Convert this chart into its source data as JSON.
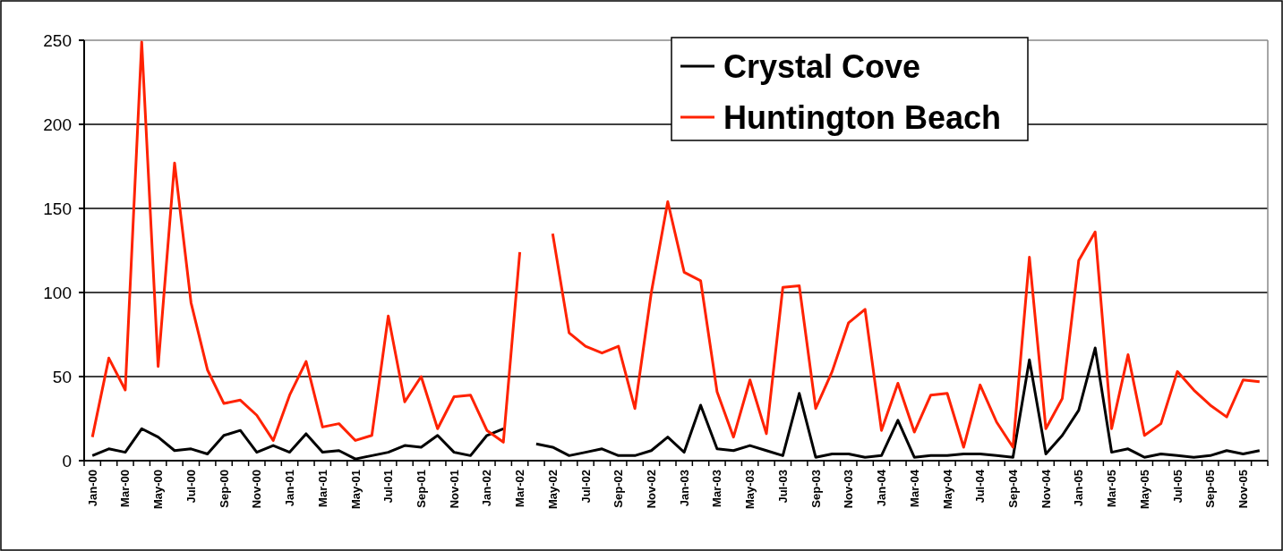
{
  "chart_data": {
    "type": "line",
    "categories": [
      "Jan-00",
      null,
      "Mar-00",
      null,
      "May-00",
      null,
      "Jul-00",
      null,
      "Sep-00",
      null,
      "Nov-00",
      null,
      "Jan-01",
      null,
      "Mar-01",
      null,
      "May-01",
      null,
      "Jul-01",
      null,
      "Sep-01",
      null,
      "Nov-01",
      null,
      "Jan-02",
      null,
      "Mar-02",
      null,
      "May-02",
      null,
      "Jul-02",
      null,
      "Sep-02",
      null,
      "Nov-02",
      null,
      "Jan-03",
      null,
      "Mar-03",
      null,
      "May-03",
      null,
      "Jul-03",
      null,
      "Sep-03",
      null,
      "Nov-03",
      null,
      "Jan-04",
      null,
      "Mar-04",
      null,
      "May-04",
      null,
      "Jul-04",
      null,
      "Sep-04",
      null,
      "Nov-04",
      null,
      "Jan-05",
      null,
      "Mar-05",
      null,
      "May-05",
      null,
      "Jul-05",
      null,
      "Sep-05",
      null,
      "Nov-05",
      null
    ],
    "series": [
      {
        "name": "Crystal Cove",
        "color": "#000000",
        "values": [
          3,
          7,
          5,
          19,
          14,
          6,
          7,
          4,
          15,
          18,
          5,
          9,
          5,
          16,
          5,
          6,
          1,
          3,
          5,
          9,
          8,
          15,
          5,
          3,
          15,
          19,
          null,
          10,
          8,
          3,
          5,
          7,
          3,
          3,
          6,
          14,
          5,
          33,
          7,
          6,
          9,
          6,
          3,
          40,
          2,
          4,
          4,
          2,
          3,
          24,
          2,
          3,
          3,
          4,
          4,
          3,
          2,
          60,
          4,
          15,
          30,
          67,
          5,
          7,
          2,
          4,
          3,
          2,
          3,
          6,
          4,
          6
        ]
      },
      {
        "name": "Huntington Beach",
        "color": "#ff2200",
        "values": [
          14,
          61,
          42,
          249,
          56,
          177,
          94,
          54,
          34,
          36,
          27,
          12,
          39,
          59,
          20,
          22,
          12,
          15,
          86,
          35,
          50,
          19,
          38,
          39,
          18,
          11,
          124,
          null,
          135,
          76,
          68,
          64,
          68,
          31,
          100,
          154,
          112,
          107,
          41,
          14,
          48,
          16,
          103,
          104,
          31,
          53,
          82,
          90,
          18,
          46,
          17,
          39,
          40,
          8,
          45,
          23,
          8,
          121,
          19,
          37,
          119,
          136,
          19,
          63,
          15,
          22,
          53,
          42,
          33,
          26,
          48,
          47
        ]
      }
    ],
    "ylim": [
      0,
      250
    ],
    "yticks": [
      0,
      50,
      100,
      150,
      200,
      250
    ],
    "grid": "y",
    "legend": "top right",
    "line_style": "solid"
  }
}
